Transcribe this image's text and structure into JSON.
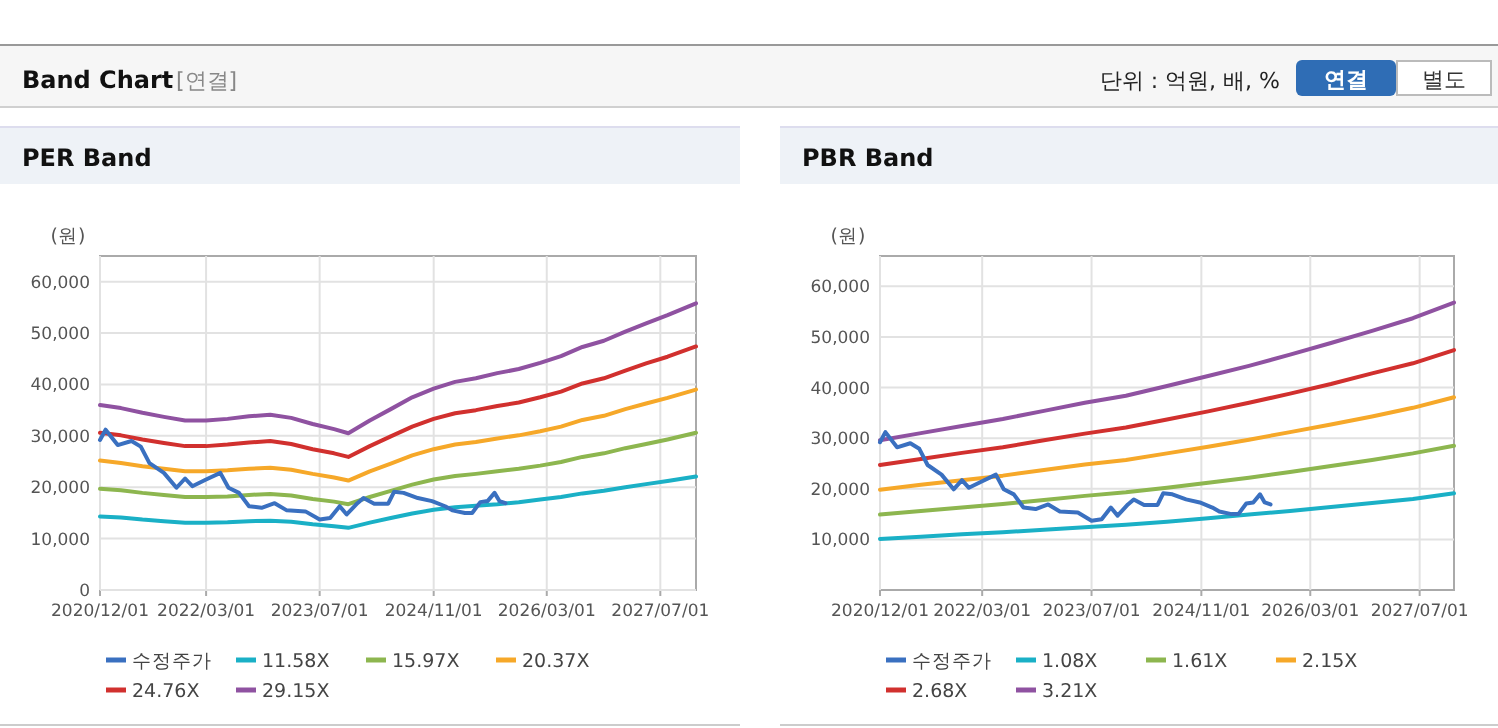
{
  "chart_data": [
    {
      "type": "other",
      "title": "Band Chart",
      "subtitle": "[연결]",
      "annotations": [
        "단위 : 억원, 배, %",
        "연결",
        "별도"
      ]
    },
    {
      "type": "line",
      "title": "PER Band",
      "ylabel": "(원)",
      "grid": true,
      "legend": "bottom",
      "xlim": [
        "2020-12-01",
        "2027-12-01"
      ],
      "xticks": [
        {
          "value": "2020-12-01",
          "label": "2020/12/01"
        },
        {
          "value": "2022-03-01",
          "label": "2022/03/01"
        },
        {
          "value": "2023-07-01",
          "label": "2023/07/01"
        },
        {
          "value": "2024-11-01",
          "label": "2024/11/01"
        },
        {
          "value": "2026-03-01",
          "label": "2026/03/01"
        },
        {
          "value": "2027-07-01",
          "label": "2027/07/01"
        }
      ],
      "ylim": [
        0,
        65000
      ],
      "yticks": [
        0,
        {
          "value": 10000,
          "label": "10,000"
        },
        {
          "value": 20000,
          "label": "20,000"
        },
        {
          "value": 30000,
          "label": "30,000"
        },
        {
          "value": 40000,
          "label": "40,000"
        },
        {
          "value": 50000,
          "label": "50,000"
        },
        {
          "value": 60000,
          "label": "60,000"
        }
      ],
      "x": [
        "2020-12",
        "2021-03",
        "2021-06",
        "2021-09",
        "2021-12",
        "2022-03",
        "2022-06",
        "2022-09",
        "2022-12",
        "2023-03",
        "2023-06",
        "2023-09",
        "2023-11",
        "2024-02",
        "2024-05",
        "2024-08",
        "2024-11",
        "2025-02",
        "2025-05",
        "2025-08",
        "2025-11",
        "2026-02",
        "2026-05",
        "2026-08",
        "2026-11",
        "2027-02",
        "2027-05",
        "2027-08",
        "2027-12"
      ],
      "series": [
        {
          "name": "수정주가",
          "color": "#3a70c0",
          "x": [
            "2020-12-01",
            "2020-12-25",
            "2021-02-15",
            "2021-04-15",
            "2021-05-25",
            "2021-07-01",
            "2021-09-01",
            "2021-10-25",
            "2021-12-01",
            "2022-01-01",
            "2022-03-01",
            "2022-05-01",
            "2022-06-05",
            "2022-07-20",
            "2022-09-01",
            "2022-10-25",
            "2022-12-20",
            "2023-02-10",
            "2023-05-01",
            "2023-07-01",
            "2023-08-15",
            "2023-09-25",
            "2023-10-25",
            "2023-12-10",
            "2024-01-05",
            "2024-02-20",
            "2024-04-20",
            "2024-05-15",
            "2024-06-25",
            "2024-08-25",
            "2024-10-25",
            "2024-12-20",
            "2025-01-20",
            "2025-03-15",
            "2025-04-15",
            "2025-05-20",
            "2025-06-20",
            "2025-07-20",
            "2025-08-10",
            "2025-09-05"
          ],
          "values": [
            29200,
            31200,
            28200,
            29000,
            27900,
            24700,
            22800,
            19900,
            21700,
            20200,
            21500,
            22800,
            19900,
            18900,
            16300,
            16000,
            16900,
            15500,
            15300,
            13700,
            14000,
            16300,
            14700,
            16900,
            17900,
            16800,
            16800,
            19100,
            18900,
            17900,
            17300,
            16300,
            15500,
            15000,
            15000,
            17100,
            17300,
            18900,
            17300,
            16900
          ]
        },
        {
          "name": "11.58X",
          "color": "#1ab0c6",
          "values": [
            14300,
            14100,
            13700,
            13400,
            13100,
            13100,
            13200,
            13400,
            13500,
            13300,
            12800,
            12400,
            12100,
            13100,
            14000,
            14900,
            15600,
            16100,
            16400,
            16700,
            17100,
            17600,
            18100,
            18800,
            19300,
            20000,
            20600,
            21200,
            22100
          ]
        },
        {
          "name": "15.97X",
          "color": "#8db64f",
          "values": [
            19700,
            19400,
            18900,
            18500,
            18100,
            18100,
            18200,
            18500,
            18700,
            18400,
            17700,
            17200,
            16700,
            18100,
            19300,
            20500,
            21500,
            22200,
            22600,
            23100,
            23600,
            24200,
            24900,
            25900,
            26600,
            27600,
            28400,
            29300,
            30600
          ]
        },
        {
          "name": "20.37X",
          "color": "#f6a829",
          "values": [
            25200,
            24700,
            24100,
            23600,
            23100,
            23100,
            23300,
            23600,
            23800,
            23400,
            22600,
            21900,
            21300,
            23100,
            24600,
            26200,
            27400,
            28300,
            28800,
            29500,
            30100,
            30900,
            31800,
            33100,
            33900,
            35200,
            36300,
            37400,
            39000
          ]
        },
        {
          "name": "24.76X",
          "color": "#d1302e",
          "values": [
            30600,
            30100,
            29300,
            28600,
            28000,
            28000,
            28300,
            28700,
            29000,
            28400,
            27400,
            26600,
            25900,
            28000,
            29900,
            31800,
            33300,
            34400,
            35000,
            35800,
            36500,
            37500,
            38600,
            40200,
            41200,
            42700,
            44100,
            45400,
            47400
          ]
        },
        {
          "name": "29.15X",
          "color": "#8f52a1",
          "values": [
            36000,
            35400,
            34500,
            33700,
            33000,
            33000,
            33300,
            33800,
            34100,
            33500,
            32300,
            31300,
            30500,
            33000,
            35200,
            37500,
            39200,
            40500,
            41200,
            42200,
            43000,
            44200,
            45500,
            47300,
            48500,
            50300,
            51900,
            53500,
            55800
          ]
        }
      ]
    },
    {
      "type": "line",
      "title": "PBR Band",
      "ylabel": "(원)",
      "grid": true,
      "legend": "bottom",
      "xlim": [
        "2020-12-01",
        "2027-12-01"
      ],
      "xticks": [
        {
          "value": "2020-12-01",
          "label": "2020/12/01"
        },
        {
          "value": "2022-03-01",
          "label": "2022/03/01"
        },
        {
          "value": "2023-07-01",
          "label": "2023/07/01"
        },
        {
          "value": "2024-11-01",
          "label": "2024/11/01"
        },
        {
          "value": "2026-03-01",
          "label": "2026/03/01"
        },
        {
          "value": "2027-07-01",
          "label": "2027/07/01"
        }
      ],
      "ylim": [
        0,
        66000
      ],
      "yticks": [
        {
          "value": 10000,
          "label": "10,000"
        },
        {
          "value": 20000,
          "label": "20,000"
        },
        {
          "value": 30000,
          "label": "30,000"
        },
        {
          "value": 40000,
          "label": "40,000"
        },
        {
          "value": 50000,
          "label": "50,000"
        },
        {
          "value": 60000,
          "label": "60,000"
        }
      ],
      "x": [
        "2020-12",
        "2021-06",
        "2021-12",
        "2022-06",
        "2022-12",
        "2023-06",
        "2023-12",
        "2024-06",
        "2024-12",
        "2025-06",
        "2025-12",
        "2026-06",
        "2026-12",
        "2027-06",
        "2027-12"
      ],
      "series": [
        {
          "name": "수정주가",
          "color": "#3a70c0",
          "x": [
            "2020-12-01",
            "2020-12-25",
            "2021-02-15",
            "2021-04-15",
            "2021-05-25",
            "2021-07-01",
            "2021-09-01",
            "2021-10-25",
            "2021-12-01",
            "2022-01-01",
            "2022-03-01",
            "2022-05-01",
            "2022-06-05",
            "2022-07-20",
            "2022-09-01",
            "2022-10-25",
            "2022-12-20",
            "2023-02-10",
            "2023-05-01",
            "2023-07-01",
            "2023-08-15",
            "2023-09-25",
            "2023-10-25",
            "2023-12-10",
            "2024-01-05",
            "2024-02-20",
            "2024-04-20",
            "2024-05-15",
            "2024-06-25",
            "2024-08-25",
            "2024-10-25",
            "2024-12-20",
            "2025-01-20",
            "2025-03-15",
            "2025-04-15",
            "2025-05-20",
            "2025-06-20",
            "2025-07-20",
            "2025-08-10",
            "2025-09-05"
          ],
          "values": [
            29200,
            31200,
            28200,
            29000,
            27900,
            24700,
            22800,
            19900,
            21700,
            20200,
            21500,
            22800,
            19900,
            18900,
            16300,
            16000,
            16900,
            15500,
            15300,
            13700,
            14000,
            16300,
            14700,
            16900,
            17900,
            16800,
            16800,
            19100,
            18900,
            17900,
            17300,
            16300,
            15500,
            15000,
            15000,
            17100,
            17300,
            18900,
            17300,
            16900
          ]
        },
        {
          "name": "1.08X",
          "color": "#1ab0c6",
          "values": [
            10100,
            10500,
            11000,
            11400,
            11900,
            12400,
            12900,
            13500,
            14200,
            14900,
            15600,
            16400,
            17200,
            18000,
            19100
          ]
        },
        {
          "name": "1.61X",
          "color": "#8db64f",
          "values": [
            14900,
            15600,
            16300,
            17000,
            17800,
            18600,
            19300,
            20200,
            21200,
            22200,
            23300,
            24500,
            25700,
            27000,
            28500
          ]
        },
        {
          "name": "2.15X",
          "color": "#f6a829",
          "values": [
            19800,
            20800,
            21700,
            22600,
            23700,
            24800,
            25700,
            27000,
            28300,
            29700,
            31200,
            32700,
            34300,
            36000,
            38100
          ]
        },
        {
          "name": "2.68X",
          "color": "#d1302e",
          "values": [
            24700,
            25900,
            27100,
            28200,
            29600,
            30900,
            32100,
            33700,
            35300,
            37000,
            38800,
            40700,
            42800,
            44800,
            47400
          ]
        },
        {
          "name": "3.21X",
          "color": "#8f52a1",
          "values": [
            29600,
            31000,
            32400,
            33800,
            35400,
            37000,
            38400,
            40300,
            42300,
            44300,
            46500,
            48800,
            51200,
            53700,
            56800
          ]
        }
      ]
    }
  ]
}
